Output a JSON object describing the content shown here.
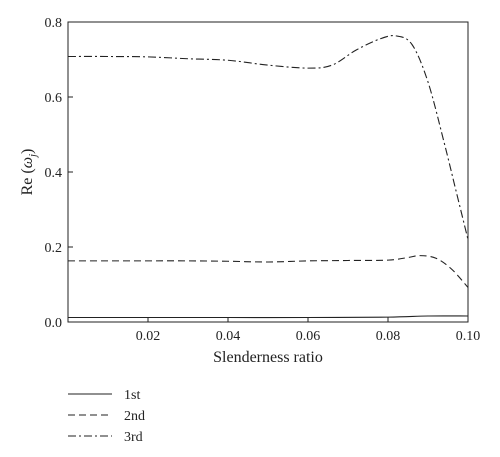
{
  "chart_data": {
    "type": "line",
    "xlabel": "Slenderness ratio",
    "ylabel_main": "Re (",
    "ylabel_symbol": "ω",
    "ylabel_sub": "j",
    "ylabel_close": ")",
    "xlim": [
      0.0,
      0.1
    ],
    "ylim": [
      0.0,
      0.8
    ],
    "x_ticks": [
      0.02,
      0.04,
      0.06,
      0.08,
      0.1
    ],
    "x_tick_labels": [
      "0.02",
      "0.04",
      "0.06",
      "0.08",
      "0.10"
    ],
    "y_ticks": [
      0.0,
      0.2,
      0.4,
      0.6,
      0.8
    ],
    "y_tick_labels": [
      "0.0",
      "0.2",
      "0.4",
      "0.6",
      "0.8"
    ],
    "grid": false,
    "legend_position": "below",
    "series": [
      {
        "name": "1st",
        "dash": "solid",
        "x": [
          0.0,
          0.02,
          0.04,
          0.06,
          0.08,
          0.09,
          0.1
        ],
        "y": [
          0.012,
          0.012,
          0.012,
          0.012,
          0.013,
          0.016,
          0.016
        ]
      },
      {
        "name": "2nd",
        "dash": "dashed",
        "x": [
          0.0,
          0.01,
          0.02,
          0.03,
          0.04,
          0.05,
          0.06,
          0.07,
          0.08,
          0.085,
          0.088,
          0.092,
          0.096,
          0.1
        ],
        "y": [
          0.163,
          0.163,
          0.163,
          0.163,
          0.162,
          0.16,
          0.163,
          0.164,
          0.165,
          0.172,
          0.177,
          0.17,
          0.14,
          0.092
        ]
      },
      {
        "name": "3rd",
        "dash": "dashdot",
        "x": [
          0.0,
          0.01,
          0.02,
          0.03,
          0.04,
          0.05,
          0.06,
          0.066,
          0.072,
          0.078,
          0.082,
          0.086,
          0.09,
          0.094,
          0.097,
          0.1
        ],
        "y": [
          0.708,
          0.708,
          0.707,
          0.702,
          0.698,
          0.685,
          0.677,
          0.685,
          0.725,
          0.755,
          0.763,
          0.74,
          0.64,
          0.48,
          0.35,
          0.22
        ]
      }
    ]
  }
}
